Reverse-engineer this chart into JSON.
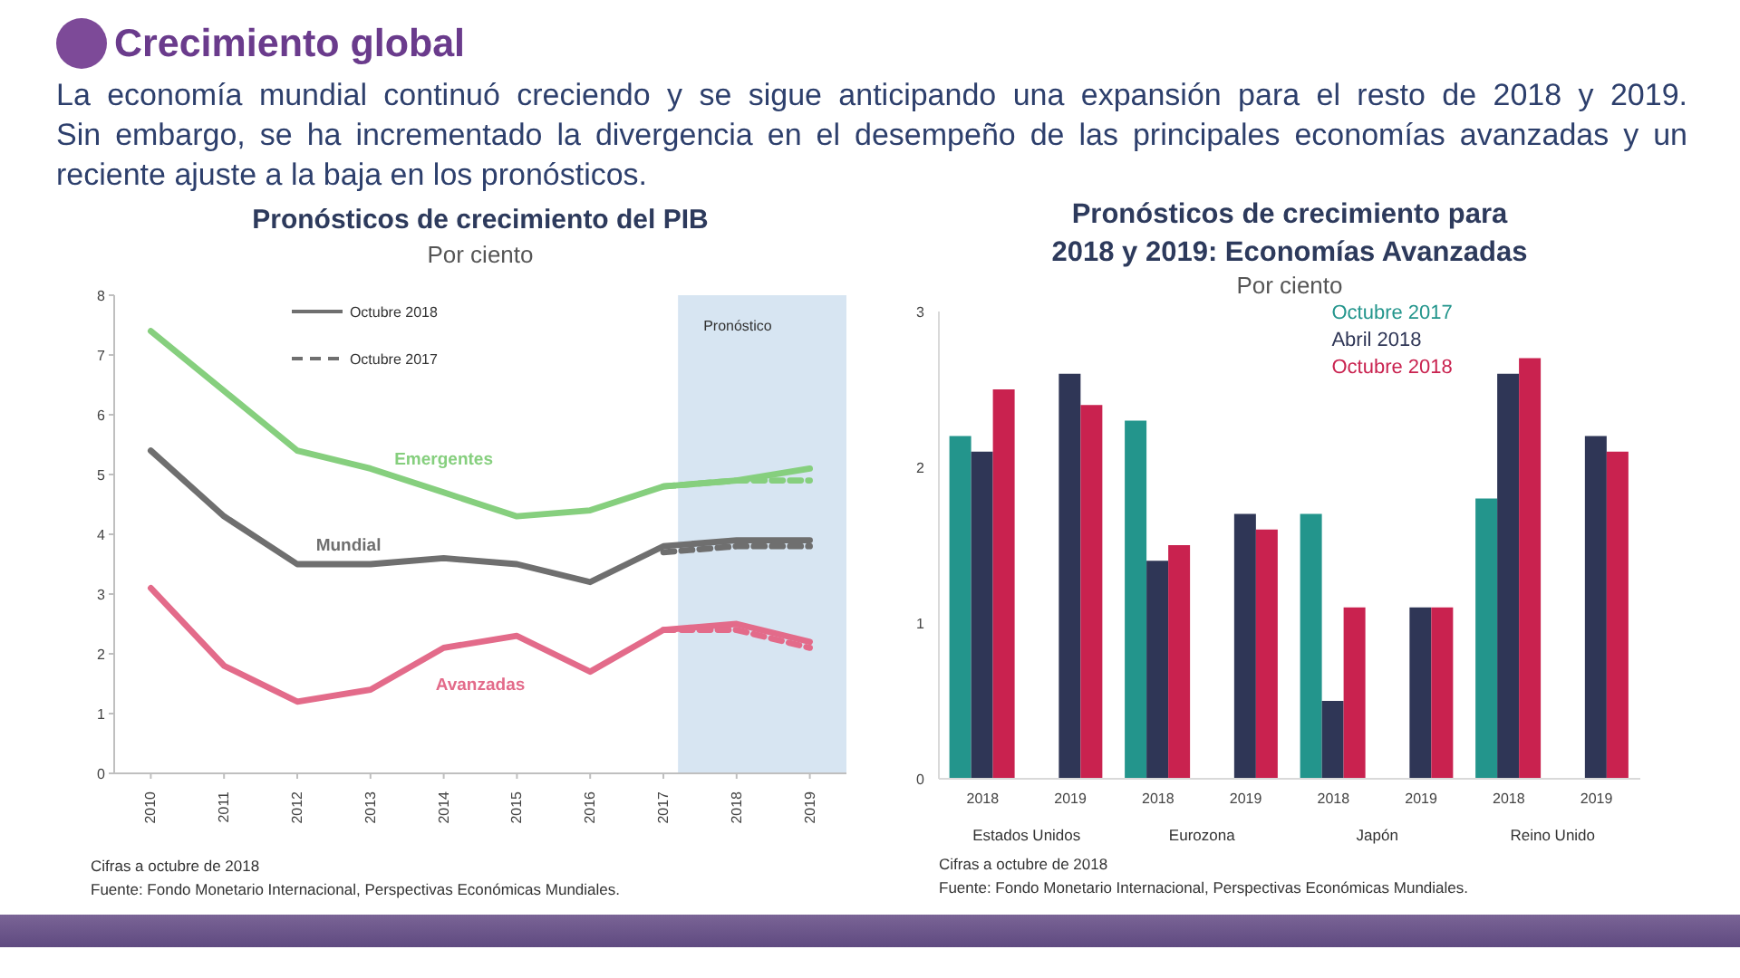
{
  "chart_data": [
    {
      "type": "other",
      "title": "Crecimiento global",
      "annotations": [
        "La economía mundial continuó creciendo y se sigue anticipando una expansión para el resto de 2018 y 2019.",
        "Sin embargo, se ha incrementado la divergencia en el desempeño de las principales economías avanzadas y un reciente ajuste a la baja en los pronósticos."
      ]
    },
    {
      "type": "line",
      "title": "Pronósticos de crecimiento del PIB",
      "subtitle": "Por ciento",
      "x": [
        2010,
        2011,
        2012,
        2013,
        2014,
        2015,
        2016,
        2017,
        2018,
        2019
      ],
      "xlim": [
        2009.5,
        2019.5
      ],
      "xticks": [
        2010,
        2011,
        2012,
        2013,
        2014,
        2015,
        2016,
        2017,
        2018,
        2019
      ],
      "ylim": [
        0,
        8
      ],
      "yticks": [
        0,
        1,
        2,
        3,
        4,
        5,
        6,
        7,
        8
      ],
      "series": [
        {
          "color": "#86cf7e",
          "line_style": "solid",
          "values": [
            7.4,
            6.4,
            5.4,
            5.1,
            4.7,
            4.3,
            4.4,
            4.8,
            4.9,
            5.1
          ]
        },
        {
          "color": "#86cf7e",
          "line_style": "dashed",
          "values": [
            null,
            null,
            null,
            null,
            null,
            null,
            null,
            4.8,
            4.9,
            4.9
          ]
        },
        {
          "name": "Octubre 2018",
          "color": "#6f6f6f",
          "line_style": "solid",
          "values": [
            5.4,
            4.3,
            3.5,
            3.5,
            3.6,
            3.5,
            3.2,
            3.8,
            3.9,
            3.9
          ]
        },
        {
          "name": "Octubre 2017",
          "color": "#6f6f6f",
          "line_style": "dashed",
          "values": [
            null,
            null,
            null,
            null,
            null,
            null,
            null,
            3.7,
            3.8,
            3.8
          ]
        },
        {
          "color": "#e36b8a",
          "line_style": "solid",
          "values": [
            3.1,
            1.8,
            1.2,
            1.4,
            2.1,
            2.3,
            1.7,
            2.4,
            2.5,
            2.2
          ]
        },
        {
          "color": "#e36b8a",
          "line_style": "dashed",
          "values": [
            null,
            null,
            null,
            null,
            null,
            null,
            null,
            2.4,
            2.4,
            2.1
          ]
        }
      ],
      "bands": [
        {
          "axis": "x",
          "from": 2017.2,
          "to": 2019.5,
          "label": "Pronóstico",
          "color": "#d7e5f2"
        }
      ],
      "legend": "top left",
      "annotations": [
        {
          "text": "Emergentes",
          "x": 2014,
          "y": 4.7
        },
        {
          "text": "Mundial",
          "x": 2012.7,
          "y": 3.5
        },
        {
          "text": "Avanzadas",
          "x": 2014.5,
          "y": 2.2
        },
        "Cifras a octubre de 2018",
        "Fuente: Fondo Monetario Internacional, Perspectivas Económicas Mundiales."
      ]
    },
    {
      "type": "bar",
      "title": "Pronósticos de crecimiento para 2018 y 2019: Economías Avanzadas",
      "subtitle": "Por ciento",
      "categories": [
        "2018",
        "2019",
        "2018",
        "2019",
        "2018",
        "2019",
        "2018",
        "2019"
      ],
      "ylim": [
        0,
        3
      ],
      "yticks": [
        0,
        1,
        2,
        3
      ],
      "series": [
        {
          "name": "Octubre 2017",
          "color": "#23958c",
          "values": [
            2.2,
            null,
            2.3,
            null,
            1.7,
            null,
            1.8,
            null
          ]
        },
        {
          "name": "Abril 2018",
          "color": "#2f3656",
          "values": [
            2.1,
            2.6,
            1.4,
            1.7,
            0.5,
            1.1,
            2.6,
            2.2
          ]
        },
        {
          "name": "Octubre 2018",
          "color": "#c9224f",
          "values": [
            2.5,
            2.4,
            1.5,
            1.6,
            1.1,
            1.1,
            2.7,
            2.1
          ]
        }
      ],
      "legend": "top",
      "annotations": [
        "Estados Unidos",
        "Eurozona",
        "Japón",
        "Reino Unido",
        "Cifras a octubre de 2018",
        "Fuente: Fondo Monetario Internacional, Perspectivas Económicas Mundiales."
      ]
    }
  ]
}
